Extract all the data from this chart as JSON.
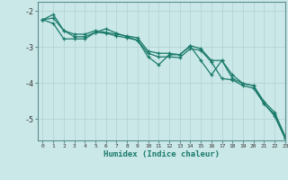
{
  "xlabel": "Humidex (Indice chaleur)",
  "background_color": "#cbe8e8",
  "grid_color": "#b0d0d0",
  "line_color": "#1a7a6a",
  "spine_color": "#5a9090",
  "xlim": [
    -0.5,
    23
  ],
  "ylim": [
    -5.6,
    -1.75
  ],
  "yticks": [
    -2,
    -3,
    -4,
    -5
  ],
  "xticks": [
    0,
    1,
    2,
    3,
    4,
    5,
    6,
    7,
    8,
    9,
    10,
    11,
    12,
    13,
    14,
    15,
    16,
    17,
    18,
    19,
    20,
    21,
    22,
    23
  ],
  "line1_x": [
    0,
    1,
    2,
    3,
    4,
    5,
    6,
    7,
    8,
    9,
    10,
    11,
    12,
    13,
    14,
    15,
    16,
    17,
    18,
    19,
    20,
    21,
    22,
    23
  ],
  "line1_y": [
    -2.25,
    -2.1,
    -2.55,
    -2.65,
    -2.65,
    -2.55,
    -2.6,
    -2.65,
    -2.7,
    -2.75,
    -3.12,
    -3.18,
    -3.18,
    -3.22,
    -2.97,
    -3.05,
    -3.38,
    -3.38,
    -3.88,
    -4.02,
    -4.08,
    -4.52,
    -4.82,
    -5.48
  ],
  "line2_x": [
    0,
    1,
    2,
    3,
    4,
    5,
    6,
    7,
    8,
    9,
    10,
    11,
    12,
    13,
    14,
    15,
    16,
    17,
    18,
    19,
    20,
    21,
    22,
    23
  ],
  "line2_y": [
    -2.25,
    -2.2,
    -2.55,
    -2.72,
    -2.72,
    -2.6,
    -2.62,
    -2.7,
    -2.75,
    -2.82,
    -3.18,
    -3.28,
    -3.28,
    -3.3,
    -3.05,
    -3.1,
    -3.42,
    -3.88,
    -3.92,
    -4.08,
    -4.15,
    -4.58,
    -4.88,
    -5.52
  ],
  "line3_x": [
    0,
    1,
    2,
    3,
    4,
    5,
    6,
    7,
    8,
    9,
    10,
    11,
    12,
    13,
    14,
    15,
    16,
    17,
    18,
    19,
    20,
    21,
    22,
    23
  ],
  "line3_y": [
    -2.25,
    -2.35,
    -2.78,
    -2.78,
    -2.78,
    -2.6,
    -2.5,
    -2.62,
    -2.72,
    -2.82,
    -3.28,
    -3.5,
    -3.22,
    -3.22,
    -2.98,
    -3.38,
    -3.78,
    -3.38,
    -3.78,
    -4.02,
    -4.08,
    -4.58,
    -4.92,
    -5.55
  ]
}
